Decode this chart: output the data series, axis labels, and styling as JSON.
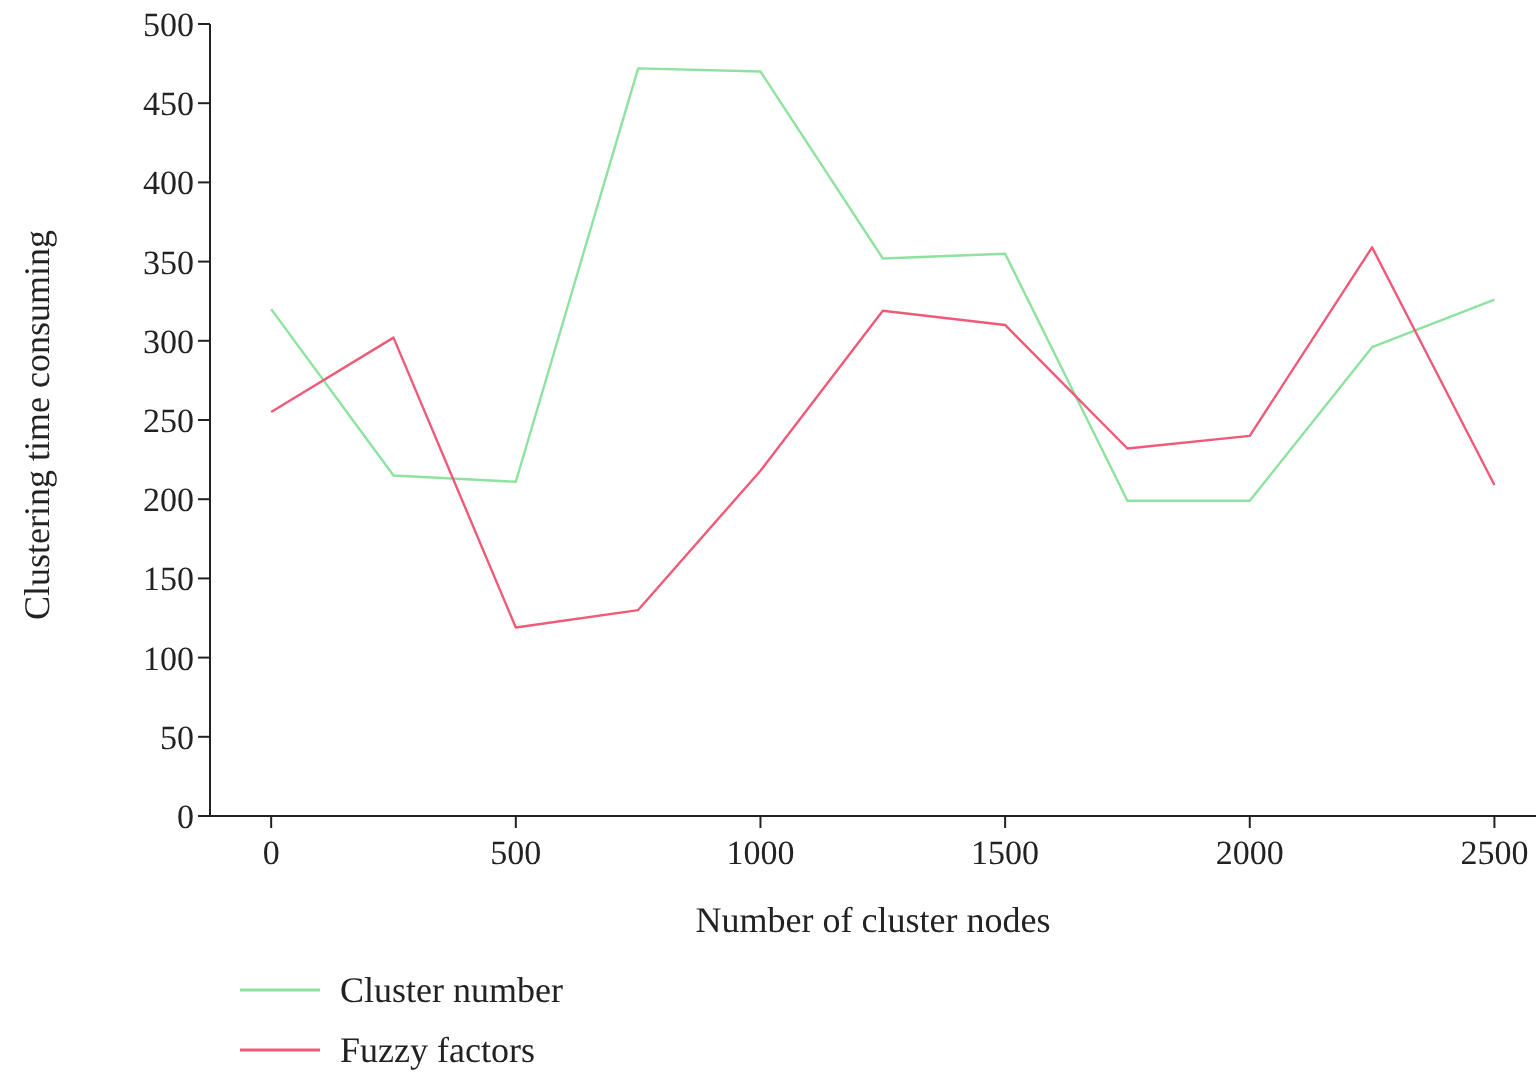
{
  "chart_data": {
    "type": "line",
    "xlabel": "Number of cluster nodes",
    "ylabel": "Clustering time consuming",
    "x": [
      0,
      250,
      500,
      750,
      1000,
      1250,
      1500,
      1750,
      2000,
      2250,
      2500
    ],
    "series": [
      {
        "name": "Cluster number",
        "color": "#8ee29f",
        "values": [
          320,
          215,
          211,
          472,
          470,
          352,
          355,
          199,
          199,
          296,
          326
        ]
      },
      {
        "name": "Fuzzy factors",
        "color": "#ee5a78",
        "values": [
          255,
          302,
          119,
          130,
          218,
          319,
          310,
          232,
          240,
          359,
          209
        ]
      }
    ],
    "xlim": [
      -125,
      2585
    ],
    "xticks": [
      0,
      500,
      1000,
      1500,
      2000,
      2500
    ],
    "ylim": [
      0,
      500
    ],
    "yticks": [
      0,
      50,
      100,
      150,
      200,
      250,
      300,
      350,
      400,
      450,
      500
    ],
    "grid": false,
    "legend": "bottom left",
    "marker": "none",
    "line_style": "solid"
  }
}
